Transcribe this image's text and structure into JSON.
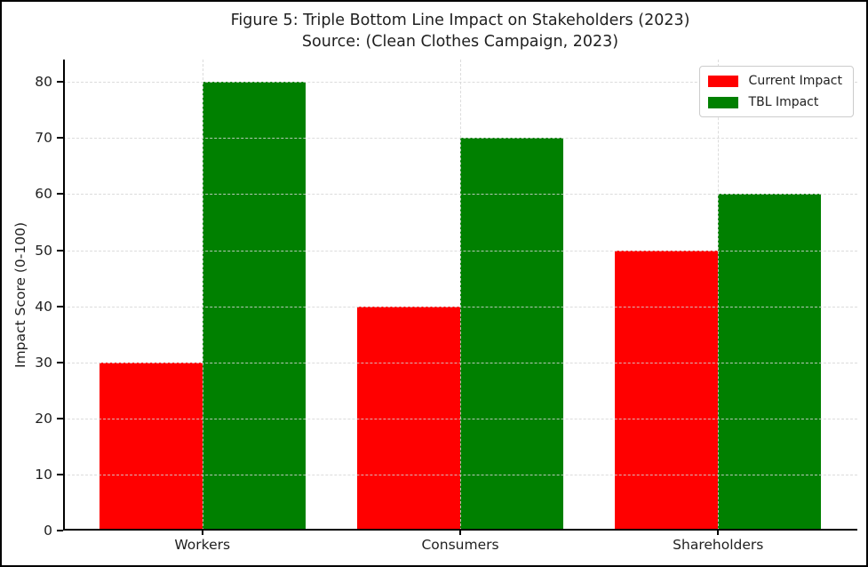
{
  "figure": {
    "title": "Figure 5: Triple Bottom Line Impact on Stakeholders (2023)",
    "subtitle": "Source: (Clean Clothes Campaign, 2023)"
  },
  "chart_data": {
    "type": "bar",
    "title": "Figure 5: Triple Bottom Line Impact on Stakeholders (2023)",
    "subtitle": "Source: (Clean Clothes Campaign, 2023)",
    "categories": [
      "Workers",
      "Consumers",
      "Shareholders"
    ],
    "series": [
      {
        "name": "Current Impact",
        "color": "#ff0000",
        "values": [
          30,
          40,
          50
        ]
      },
      {
        "name": "TBL Impact",
        "color": "#008000",
        "values": [
          80,
          70,
          60
        ]
      }
    ],
    "xlabel": "",
    "ylabel": "Impact Score (0-100)",
    "yticks": [
      0,
      10,
      20,
      30,
      40,
      50,
      60,
      70,
      80
    ],
    "ylim": [
      0,
      84
    ],
    "xlim": [
      -0.54,
      2.54
    ],
    "bar_width": 0.4,
    "grid": "dashed gridlines on both axes, drawn above bars",
    "legend_position": "upper right",
    "axis_color": "#000000",
    "grid_color": "#d6d6d6",
    "text_color": "#1f1f1f"
  }
}
